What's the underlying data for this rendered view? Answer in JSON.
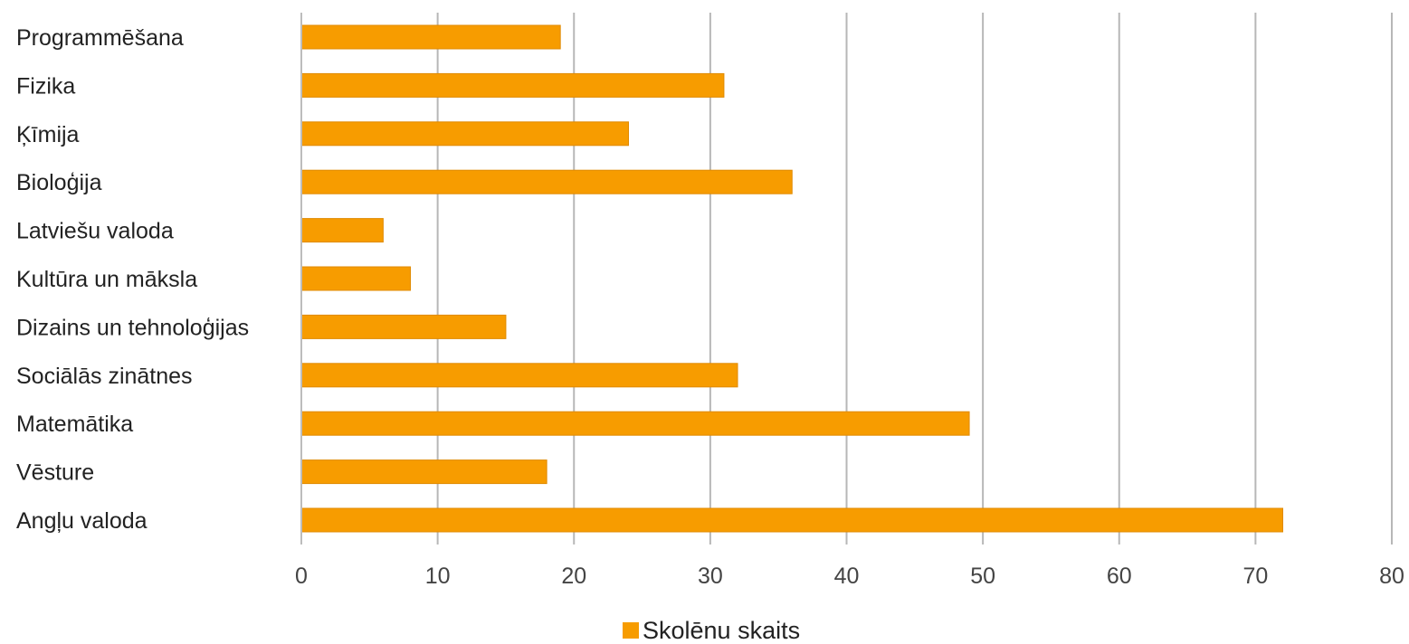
{
  "chart_data": {
    "type": "bar",
    "orientation": "horizontal",
    "categories": [
      "Programmēšana",
      "Fizika",
      "Ķīmija",
      "Bioloģija",
      "Latviešu valoda",
      "Kultūra un māksla",
      "Dizains un tehnoloģijas",
      "Sociālās zinātnes",
      "Matemātika",
      "Vēsture",
      "Angļu valoda"
    ],
    "series": [
      {
        "name": "Skolēnu skaits",
        "color": "#f79c00",
        "values": [
          19,
          31,
          24,
          36,
          6,
          8,
          15,
          32,
          49,
          18,
          72
        ]
      }
    ],
    "x_ticks": [
      "0",
      "10",
      "20",
      "30",
      "40",
      "50",
      "60",
      "70",
      "80"
    ],
    "xlim": [
      0,
      80
    ],
    "grid": true,
    "legend_position": "bottom-center"
  }
}
